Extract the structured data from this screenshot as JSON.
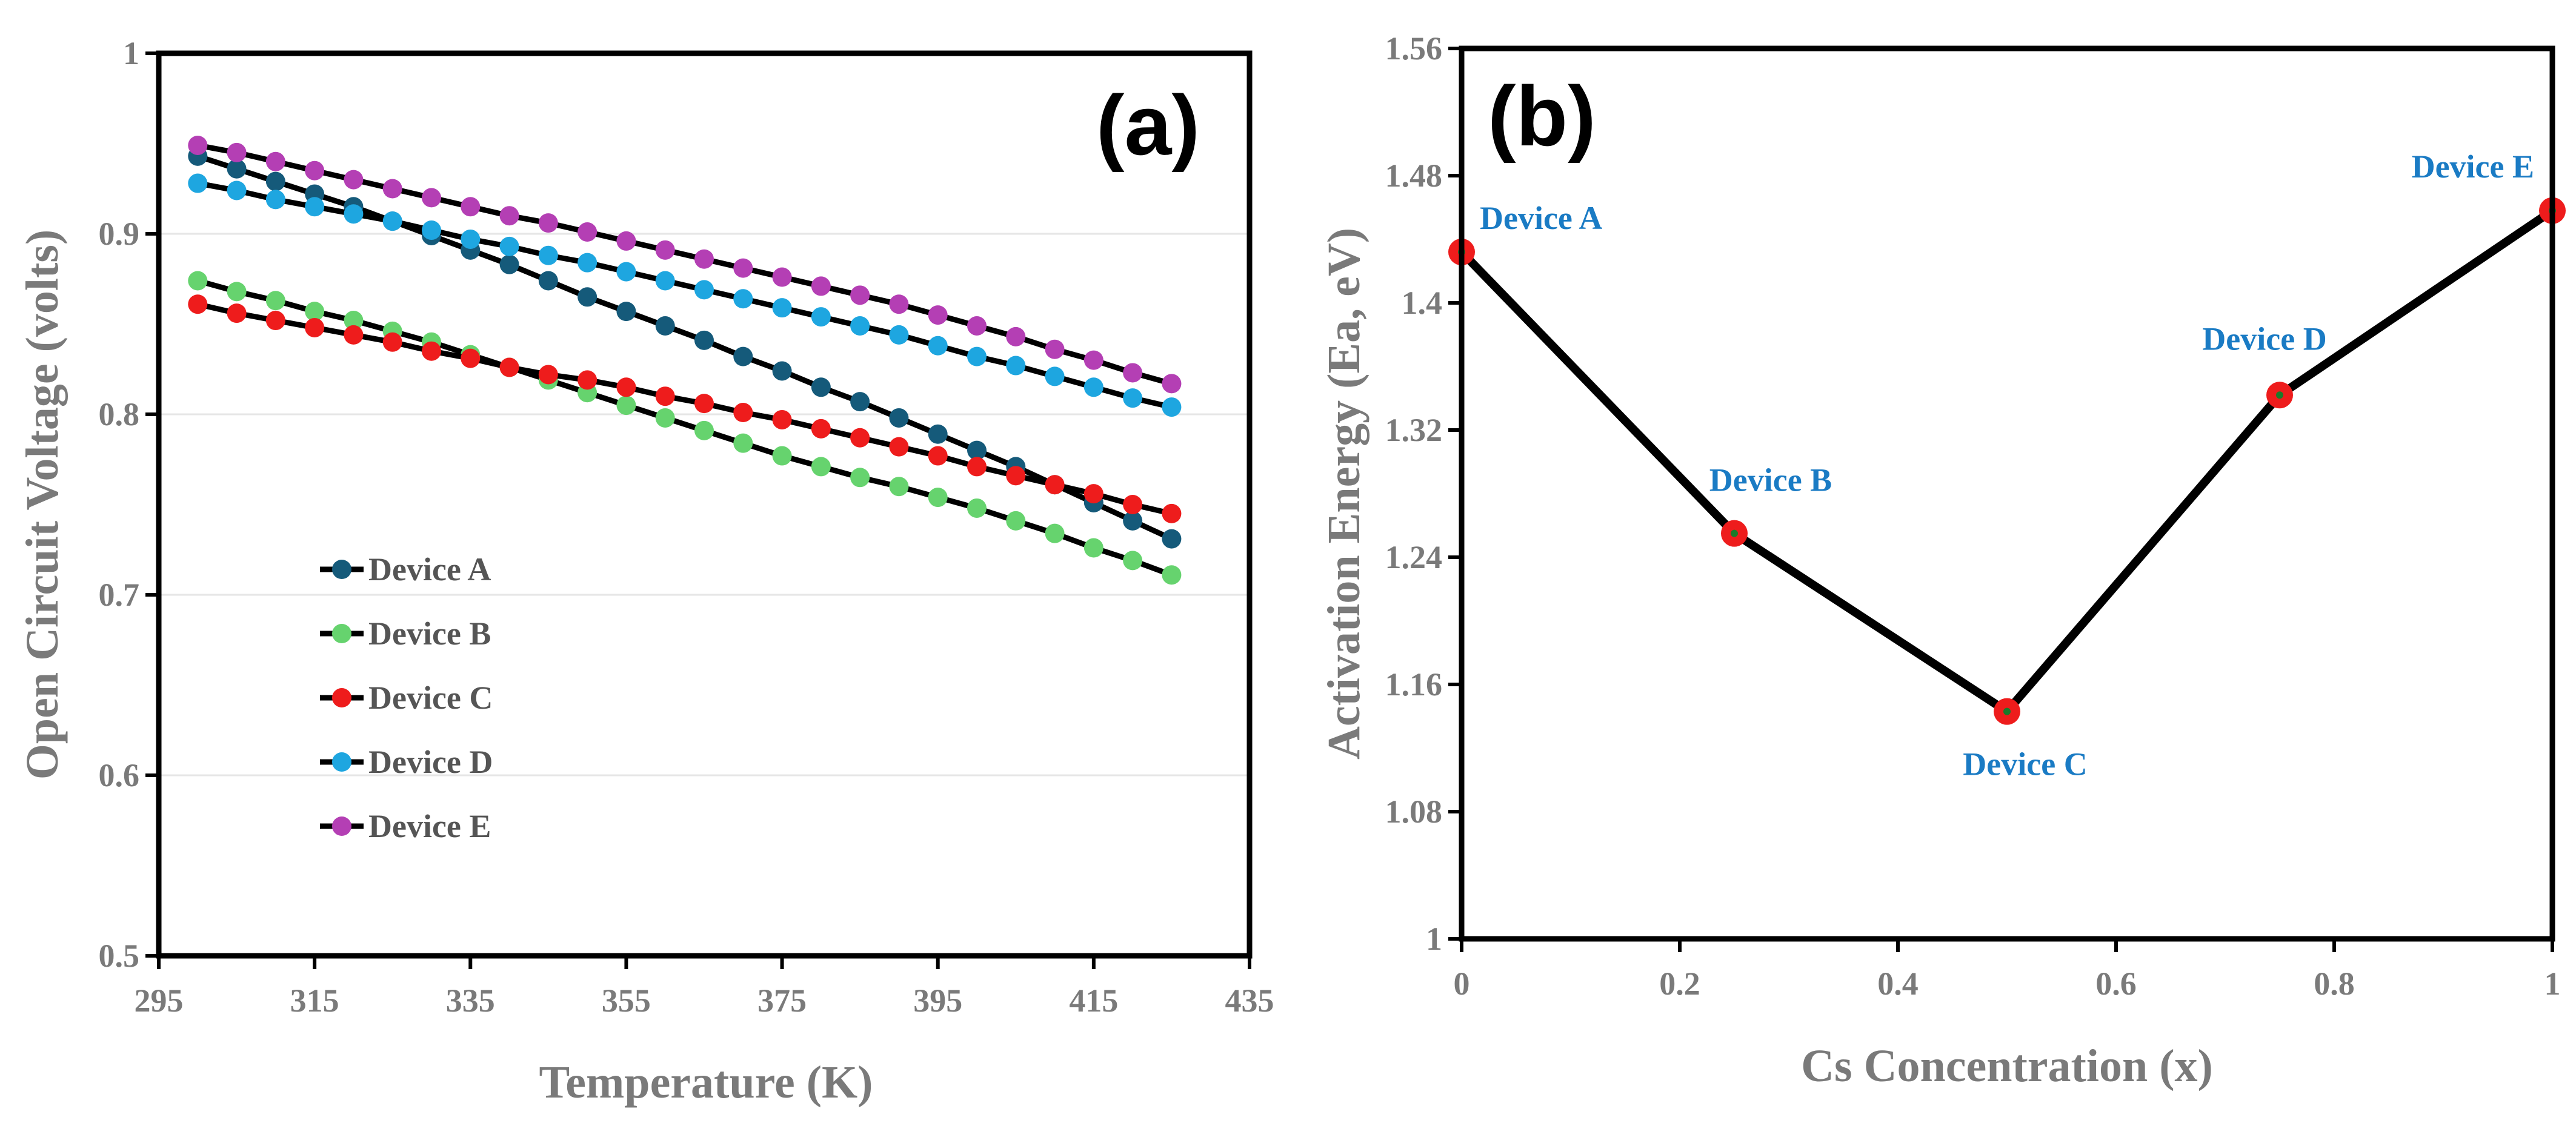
{
  "chart_data": [
    {
      "type": "line",
      "panel_label": "(a)",
      "xlabel": "Temperature (K)",
      "ylabel": "Open  Circuit Voltage (volts)",
      "xlim": [
        295,
        435
      ],
      "ylim": [
        0.5,
        1.0
      ],
      "xticks": [
        "295",
        "315",
        "335",
        "355",
        "375",
        "395",
        "415",
        "435"
      ],
      "yticks": [
        "0.5",
        "0.6",
        "0.7",
        "0.8",
        "0.9",
        "1"
      ],
      "legend_position": "lower-left",
      "x": [
        300,
        305,
        310,
        315,
        320,
        325,
        330,
        335,
        340,
        345,
        350,
        355,
        360,
        365,
        370,
        375,
        380,
        385,
        390,
        395,
        400,
        405,
        410,
        415,
        420,
        425
      ],
      "series": [
        {
          "name": "Device A",
          "color": "#155a7a",
          "values": [
            0.943,
            0.936,
            0.929,
            0.922,
            0.915,
            0.907,
            0.899,
            0.891,
            0.883,
            0.874,
            0.865,
            0.857,
            0.849,
            0.841,
            0.832,
            0.824,
            0.815,
            0.807,
            0.798,
            0.789,
            0.78,
            0.771,
            0.761,
            0.751,
            0.741,
            0.731
          ]
        },
        {
          "name": "Device B",
          "color": "#66d36e",
          "values": [
            0.874,
            0.868,
            0.863,
            0.857,
            0.852,
            0.846,
            0.84,
            0.833,
            0.826,
            0.819,
            0.812,
            0.805,
            0.798,
            0.791,
            0.784,
            0.777,
            0.771,
            0.765,
            0.76,
            0.754,
            0.748,
            0.741,
            0.734,
            0.726,
            0.719,
            0.711
          ]
        },
        {
          "name": "Device C",
          "color": "#ee1c1c",
          "values": [
            0.861,
            0.856,
            0.852,
            0.848,
            0.844,
            0.84,
            0.835,
            0.831,
            0.826,
            0.822,
            0.819,
            0.815,
            0.81,
            0.806,
            0.801,
            0.797,
            0.792,
            0.787,
            0.782,
            0.777,
            0.771,
            0.766,
            0.761,
            0.756,
            0.75,
            0.745
          ]
        },
        {
          "name": "Device D",
          "color": "#1ea6e0",
          "values": [
            0.928,
            0.924,
            0.919,
            0.915,
            0.911,
            0.907,
            0.902,
            0.897,
            0.893,
            0.888,
            0.884,
            0.879,
            0.874,
            0.869,
            0.864,
            0.859,
            0.854,
            0.849,
            0.844,
            0.838,
            0.832,
            0.827,
            0.821,
            0.815,
            0.809,
            0.804
          ]
        },
        {
          "name": "Device E",
          "color": "#b43fb4",
          "values": [
            0.949,
            0.945,
            0.94,
            0.935,
            0.93,
            0.925,
            0.92,
            0.915,
            0.91,
            0.906,
            0.901,
            0.896,
            0.891,
            0.886,
            0.881,
            0.876,
            0.871,
            0.866,
            0.861,
            0.855,
            0.849,
            0.843,
            0.836,
            0.83,
            0.823,
            0.817
          ]
        }
      ]
    },
    {
      "type": "line",
      "panel_label": "(b)",
      "xlabel": "Cs Concentration (x)",
      "ylabel": "Activation Energy (Ea, eV)",
      "xlim": [
        0,
        1
      ],
      "ylim": [
        1.0,
        1.56
      ],
      "xticks": [
        "0",
        "0.2",
        "0.4",
        "0.6",
        "0.8",
        "1"
      ],
      "yticks": [
        "1",
        "1.08",
        "1.16",
        "1.24",
        "1.32",
        "1.4",
        "1.48",
        "1.56"
      ],
      "x": [
        0,
        0.25,
        0.5,
        0.75,
        1.0
      ],
      "values": [
        1.432,
        1.255,
        1.143,
        1.342,
        1.458
      ],
      "point_labels": [
        "Device A",
        "Device B",
        "Device C",
        "Device D",
        "Device E"
      ],
      "line_color": "#000000",
      "marker_color": "#ee1c1c"
    }
  ]
}
